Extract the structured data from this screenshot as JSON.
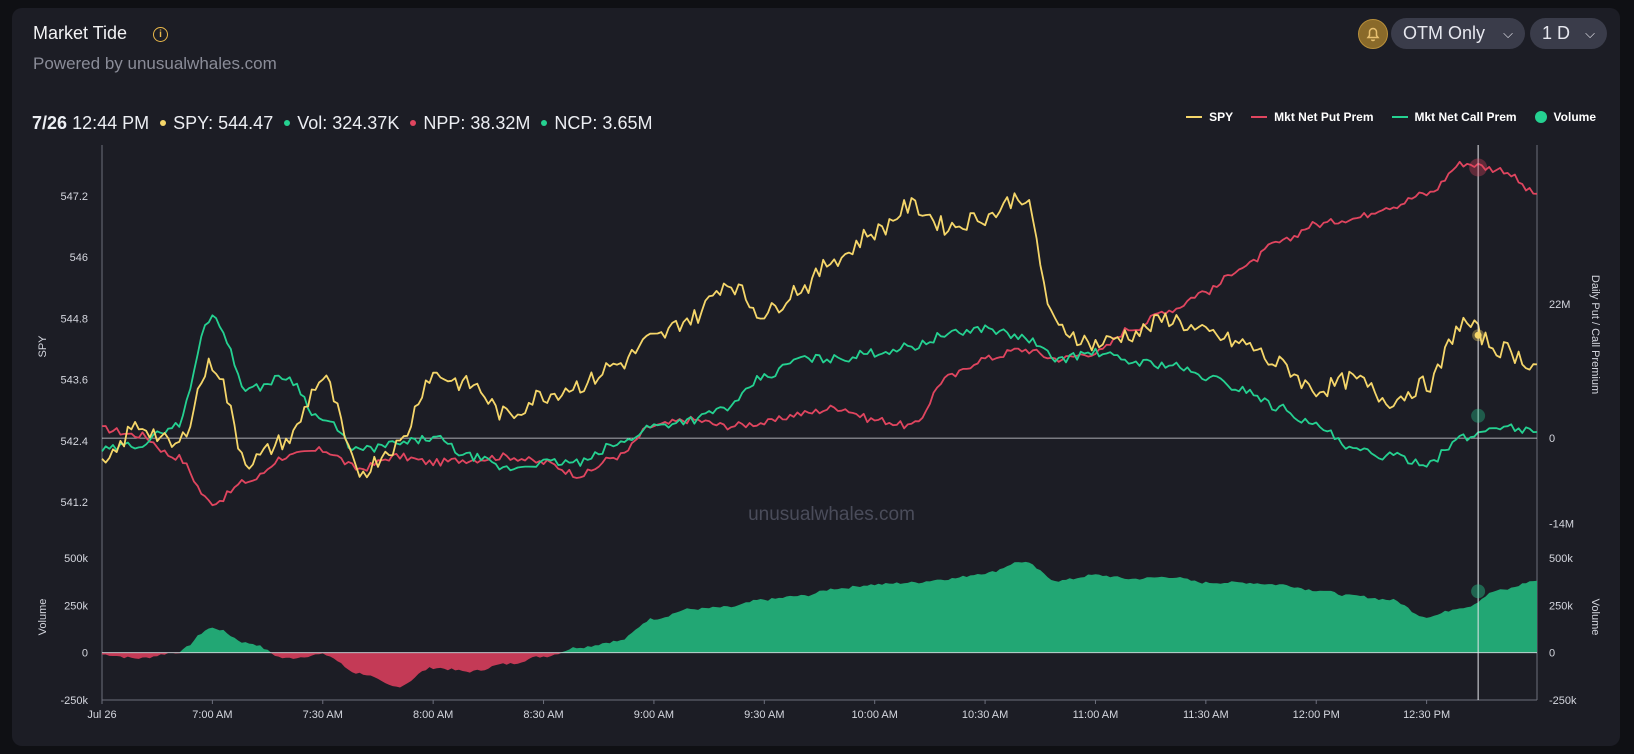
{
  "header": {
    "title": "Market Tide",
    "subtitle": "Powered by unusualwhales.com",
    "filter_label": "OTM Only",
    "range_label": "1 D"
  },
  "readout": {
    "date": "7/26",
    "time": "12:44 PM",
    "spy": "SPY: 544.47",
    "vol": "Vol: 324.37K",
    "npp": "NPP: 38.32M",
    "ncp": "NCP: 3.65M"
  },
  "colors": {
    "spy": "#f5d66a",
    "put": "#e0455f",
    "call": "#25d191",
    "vol_pos": "#22a774",
    "vol_neg": "#c43a56"
  },
  "legend": {
    "spy": "SPY",
    "put": "Mkt Net Put Prem",
    "call": "Mkt Net Call Prem",
    "volume": "Volume"
  },
  "watermark": "unusualwhales.com",
  "chart_data": {
    "type": "line",
    "title": "Market Tide",
    "x_labels": [
      "Jul 26",
      "7:00 AM",
      "7:30 AM",
      "8:00 AM",
      "8:30 AM",
      "9:00 AM",
      "9:30 AM",
      "10:00 AM",
      "10:30 AM",
      "11:00 AM",
      "11:30 AM",
      "12:00 PM",
      "12:30 PM"
    ],
    "x_range_minutes": [
      390,
      780
    ],
    "left_axis": {
      "label": "SPY",
      "ticks": [
        "547.2",
        "546",
        "544.8",
        "543.6",
        "542.4",
        "541.2"
      ],
      "range": [
        540.3,
        548.2
      ]
    },
    "right_axis": {
      "label": "Daily Put / Call Premium",
      "ticks": [
        "22M",
        "0",
        "-14M"
      ],
      "range": [
        -18,
        48
      ]
    },
    "volume_axis": {
      "left_label": "Volume",
      "right_label": "Volume",
      "ticks": [
        "500k",
        "250k",
        "0",
        "-250k"
      ],
      "range": [
        -250,
        500
      ]
    },
    "x": [
      390,
      400,
      410,
      420,
      430,
      440,
      450,
      460,
      470,
      480,
      490,
      500,
      510,
      520,
      530,
      540,
      550,
      560,
      570,
      580,
      590,
      600,
      610,
      620,
      630,
      640,
      650,
      660,
      670,
      680,
      690,
      700,
      710,
      720,
      730,
      740,
      750,
      760,
      770,
      780
    ],
    "series": [
      {
        "name": "SPY",
        "axis": "left",
        "values": [
          541.9,
          542.7,
          542.3,
          543.9,
          542.0,
          542.4,
          543.6,
          541.8,
          542.3,
          543.7,
          543.5,
          542.9,
          543.3,
          543.5,
          543.9,
          544.4,
          544.8,
          545.5,
          544.9,
          545.4,
          546.0,
          546.5,
          547.0,
          546.6,
          546.8,
          547.2,
          544.6,
          544.3,
          544.5,
          544.8,
          544.5,
          544.3,
          543.9,
          543.4,
          543.6,
          543.2,
          543.5,
          544.7,
          544.2,
          543.9
        ]
      },
      {
        "name": "Mkt Net Put Prem",
        "axis": "right",
        "values": [
          1.5,
          0.5,
          -3.0,
          -10.5,
          -7.0,
          -3.0,
          -2.0,
          -5.0,
          -3.0,
          -4.0,
          -3.5,
          -3.0,
          -4.0,
          -6.0,
          -3.0,
          2.0,
          3.0,
          2.0,
          2.5,
          4.0,
          5.0,
          3.0,
          2.0,
          10.0,
          13.0,
          14.5,
          13.0,
          14.0,
          18.0,
          21.0,
          24.0,
          28.0,
          32.0,
          35.0,
          36.0,
          38.0,
          40.0,
          45.0,
          44.0,
          40.0
        ]
      },
      {
        "name": "Mkt Net Call Prem",
        "axis": "right",
        "values": [
          -2.0,
          -1.0,
          2.0,
          20.0,
          8.0,
          10.0,
          3.0,
          -2.0,
          -1.0,
          0.0,
          -3.0,
          -5.0,
          -4.0,
          -4.0,
          -1.0,
          2.0,
          3.0,
          5.0,
          10.0,
          13.0,
          13.0,
          14.0,
          15.0,
          17.0,
          18.0,
          16.5,
          13.0,
          14.0,
          12.5,
          12.0,
          10.0,
          8.0,
          5.0,
          2.0,
          -2.0,
          -3.0,
          -4.0,
          0.0,
          2.0,
          1.0
        ]
      },
      {
        "name": "Volume",
        "axis": "volume",
        "type": "area",
        "values": [
          -10,
          -30,
          0,
          130,
          50,
          -30,
          -10,
          -110,
          -180,
          -80,
          -100,
          -60,
          -20,
          30,
          60,
          180,
          230,
          240,
          280,
          300,
          340,
          360,
          370,
          390,
          420,
          480,
          380,
          410,
          390,
          400,
          370,
          370,
          360,
          330,
          300,
          280,
          190,
          240,
          330,
          380
        ]
      }
    ]
  }
}
